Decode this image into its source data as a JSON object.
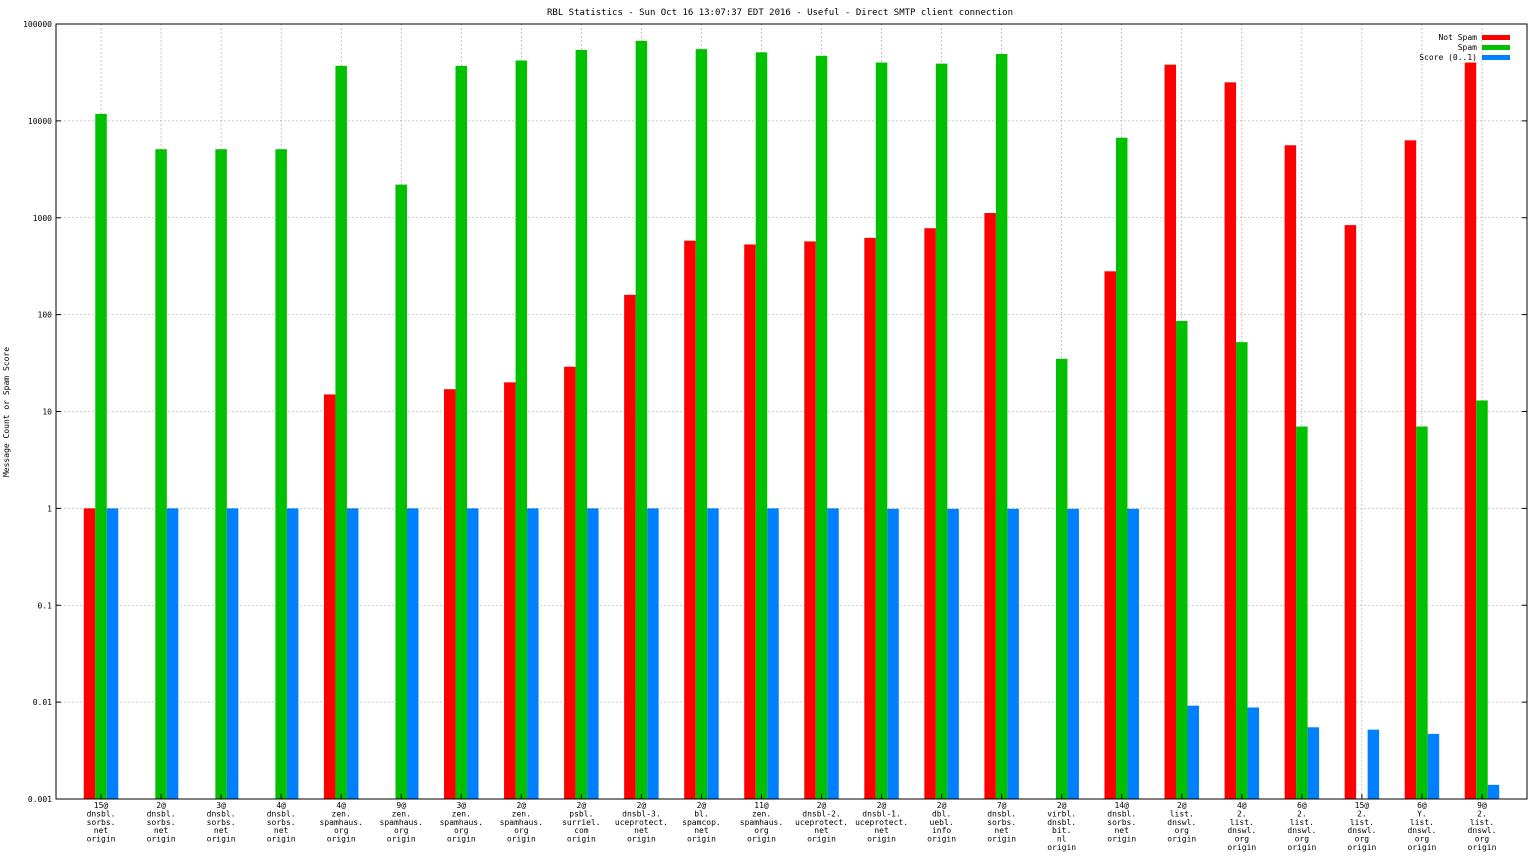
{
  "chart_data": {
    "type": "bar",
    "title": "RBL Statistics - Sun Oct 16 13:07:37 EDT 2016 - Useful - Direct SMTP client connection",
    "ylabel": "Message Count or Spam Score",
    "xlabel": "",
    "yscale": "log",
    "ylim": [
      0.001,
      100000
    ],
    "yticks": [
      "0.001",
      "0.01",
      "0.1",
      "1",
      "10",
      "100",
      "1000",
      "10000",
      "100000"
    ],
    "grid": true,
    "legend_position": "top-right",
    "categories": [
      [
        "15@",
        "dnsbl.",
        "sorbs.",
        "net",
        "origin"
      ],
      [
        "2@",
        "dnsbl.",
        "sorbs.",
        "net",
        "origin"
      ],
      [
        "3@",
        "dnsbl.",
        "sorbs.",
        "net",
        "origin"
      ],
      [
        "4@",
        "dnsbl.",
        "sorbs.",
        "net",
        "origin"
      ],
      [
        "4@",
        "zen.",
        "spamhaus.",
        "org",
        "origin"
      ],
      [
        "9@",
        "zen.",
        "spamhaus.",
        "org",
        "origin"
      ],
      [
        "3@",
        "zen.",
        "spamhaus.",
        "org",
        "origin"
      ],
      [
        "2@",
        "zen.",
        "spamhaus.",
        "org",
        "origin"
      ],
      [
        "2@",
        "psbl.",
        "surriel.",
        "com",
        "origin"
      ],
      [
        "2@",
        "dnsbl-3.",
        "uceprotect.",
        "net",
        "origin"
      ],
      [
        "2@",
        "bl.",
        "spamcop.",
        "net",
        "origin"
      ],
      [
        "11@",
        "zen.",
        "spamhaus.",
        "org",
        "origin"
      ],
      [
        "2@",
        "dnsbl-2.",
        "uceprotect.",
        "net",
        "origin"
      ],
      [
        "2@",
        "dnsbl-1.",
        "uceprotect.",
        "net",
        "origin"
      ],
      [
        "2@",
        "dbl.",
        "uebl.",
        "info",
        "origin"
      ],
      [
        "7@",
        "dnsbl.",
        "sorbs.",
        "net",
        "origin"
      ],
      [
        "2@",
        "virbl.",
        "dnsbl.",
        "bit.",
        "nl",
        "origin"
      ],
      [
        "14@",
        "dnsbl.",
        "sorbs.",
        "net",
        "origin"
      ],
      [
        "2@",
        "list.",
        "dnswl.",
        "org",
        "origin"
      ],
      [
        "4@",
        "2.",
        "list.",
        "dnswl.",
        "org",
        "origin"
      ],
      [
        "6@",
        "2.",
        "list.",
        "dnswl.",
        "org",
        "origin"
      ],
      [
        "15@",
        "2.",
        "list.",
        "dnswl.",
        "org",
        "origin"
      ],
      [
        "6@",
        "Y.",
        "list.",
        "dnswl.",
        "org",
        "origin"
      ],
      [
        "9@",
        "2.",
        "list.",
        "dnswl.",
        "org",
        "origin"
      ]
    ],
    "series": [
      {
        "name": "Not Spam",
        "color": "#ff0000",
        "values": [
          1,
          null,
          null,
          null,
          15,
          null,
          17,
          20,
          29,
          160,
          580,
          530,
          570,
          620,
          780,
          1120,
          null,
          280,
          38000,
          25000,
          5600,
          840,
          6300,
          40000
        ]
      },
      {
        "name": "Spam",
        "color": "#00c000",
        "values": [
          11800,
          5100,
          5100,
          5100,
          37000,
          2200,
          37000,
          42000,
          54000,
          67000,
          55000,
          51000,
          47000,
          40000,
          39000,
          49000,
          35,
          6700,
          86,
          52,
          7,
          null,
          7,
          13
        ]
      },
      {
        "name": "Score (0..1)",
        "color": "#0080ff",
        "values": [
          1,
          1,
          1,
          1,
          1,
          1,
          1,
          1,
          1,
          1,
          1,
          1,
          1,
          0.99,
          0.99,
          0.99,
          0.99,
          0.99,
          0.0092,
          0.0088,
          0.0055,
          0.0052,
          0.0047,
          0.0014
        ]
      }
    ]
  }
}
